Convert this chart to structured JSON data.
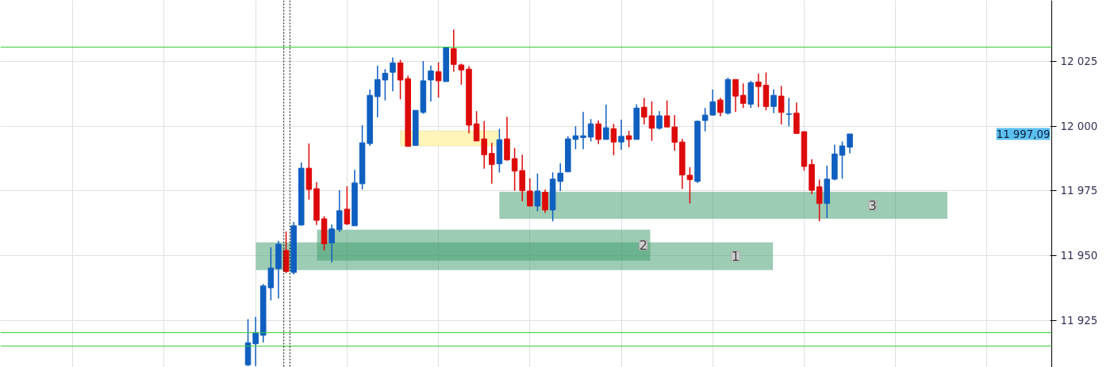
{
  "chart_data": {
    "type": "candlestick",
    "categories": [
      null,
      null,
      null,
      null,
      null,
      null,
      null,
      null,
      null,
      null,
      null,
      null,
      null,
      null,
      null,
      null,
      null,
      null,
      null,
      null,
      null,
      null,
      null,
      null,
      null,
      null,
      null,
      null,
      null,
      null,
      null,
      null,
      null,
      null,
      null,
      null,
      null,
      null,
      null,
      null,
      null,
      null,
      null,
      null,
      null,
      null,
      null,
      null,
      null,
      null,
      null,
      null,
      null,
      null,
      null,
      null,
      null,
      null,
      null,
      null,
      null,
      null,
      null,
      null,
      null,
      null,
      null,
      null,
      null,
      null,
      null,
      null,
      null,
      null,
      null,
      null,
      null,
      null,
      null,
      null,
      null,
      null,
      null,
      null,
      null,
      null,
      null,
      null,
      null,
      null,
      null,
      null,
      null,
      null,
      null,
      null,
      null,
      null,
      null,
      null,
      null,
      null,
      null,
      null,
      null,
      null,
      null,
      null,
      null,
      null,
      null,
      null,
      null,
      null,
      null,
      null,
      null,
      null,
      null,
      null,
      null,
      null,
      null,
      null,
      null,
      null,
      null,
      null,
      null,
      null,
      null,
      null,
      null,
      null,
      null,
      null,
      null,
      null
    ],
    "ohlc": [
      null,
      null,
      null,
      null,
      null,
      null,
      null,
      null,
      null,
      null,
      null,
      null,
      null,
      null,
      null,
      null,
      null,
      null,
      null,
      null,
      null,
      null,
      null,
      null,
      null,
      null,
      null,
      null,
      null,
      null,
      null,
      null,
      [
        11908,
        11925.6,
        11907.5,
        11916.5
      ],
      [
        11916.1,
        11926.5,
        11907.5,
        11920.2
      ],
      [
        11919.4,
        11939.2,
        11916.6,
        11938.4
      ],
      [
        11937.7,
        11953.3,
        11932.8,
        11945.3
      ],
      [
        11945.1,
        11955.8,
        11933.6,
        11954.5
      ],
      [
        11952.1,
        11959.4,
        11943.3,
        11944.0
      ],
      [
        11943.6,
        11963.1,
        11942.8,
        11961.6
      ],
      [
        11961.9,
        11986.0,
        11961.6,
        11983.8
      ],
      [
        11983.8,
        11993.3,
        11971.7,
        11975.6
      ],
      [
        11975.9,
        11978.4,
        11961.9,
        11963.7
      ],
      [
        11964.3,
        11965.3,
        11952.1,
        11954.7
      ],
      [
        11955.0,
        11962.1,
        11947.4,
        11960.4
      ],
      [
        11960.1,
        11975.3,
        11959.2,
        11967.4
      ],
      [
        11968.0,
        11976.8,
        11961.9,
        11962.3
      ],
      [
        11961.6,
        11983.2,
        11961.6,
        11978.1
      ],
      [
        11977.8,
        12000.4,
        11975.6,
        11993.6
      ],
      [
        11993.3,
        12014.1,
        11992.4,
        12011.9
      ],
      [
        12011.4,
        12023.3,
        12003.4,
        12018.0
      ],
      [
        12017.8,
        12022.0,
        12009.9,
        12020.4
      ],
      [
        12020.8,
        12026.5,
        12013.4,
        12024.4
      ],
      [
        12024.4,
        12025.6,
        12010.4,
        12017.8
      ],
      [
        12018.3,
        12019.5,
        11992.2,
        11992.2
      ],
      [
        11992.6,
        12006.1,
        11992.4,
        12006.1
      ],
      [
        12005.3,
        12025.1,
        12004.8,
        12017.5
      ],
      [
        12017.8,
        12023.4,
        12009.5,
        12021.3
      ],
      [
        12021.0,
        12024.6,
        12011.1,
        12017.5
      ],
      [
        12017.2,
        12030.4,
        12017.2,
        12030.4
      ],
      [
        12029.9,
        12037.3,
        12021.0,
        12023.8
      ],
      [
        12023.6,
        12024.1,
        12016.0,
        12021.7
      ],
      [
        12022.0,
        12023.1,
        11997.2,
        12000.4
      ],
      [
        12000.9,
        12005.8,
        11994.3,
        11994.3
      ],
      [
        11995.1,
        12002.0,
        11983.6,
        11989.0
      ],
      [
        11989.5,
        11993.6,
        11977.8,
        11985.2
      ],
      [
        11985.5,
        11999.0,
        11982.1,
        11994.8
      ],
      [
        11995.1,
        12003.6,
        11986.7,
        11987.0
      ],
      [
        11987.5,
        11991.6,
        11975.1,
        11982.7
      ],
      [
        11982.9,
        11989.0,
        11971.0,
        11975.1
      ],
      [
        11975.0,
        11979.9,
        11969.2,
        11969.2
      ],
      [
        11969.2,
        11981.7,
        11967.2,
        11975.0
      ],
      [
        11974.5,
        11975.5,
        11966.5,
        11967.7
      ],
      [
        11967.7,
        11982.2,
        11963.3,
        11979.6
      ],
      [
        11978.7,
        11985.7,
        11975.0,
        11981.9
      ],
      [
        11982.4,
        11996.1,
        11982.4,
        11995.1
      ],
      [
        11994.9,
        12000.0,
        11991.1,
        11996.3
      ],
      [
        11995.6,
        12005.5,
        11991.1,
        11996.3
      ],
      [
        11995.8,
        12002.7,
        11994.1,
        12000.9
      ],
      [
        12000.9,
        12002.2,
        11993.1,
        11994.9
      ],
      [
        11994.9,
        12008.3,
        11994.9,
        11999.4
      ],
      [
        11999.0,
        12000.9,
        11988.8,
        11993.9
      ],
      [
        11993.9,
        12002.5,
        11990.9,
        11996.1
      ],
      [
        11996.3,
        11998.2,
        11991.9,
        11994.9
      ],
      [
        11994.9,
        12008.5,
        11994.9,
        12007.0
      ],
      [
        12007.3,
        12010.9,
        12000.7,
        12003.5
      ],
      [
        12004.0,
        12009.5,
        11994.3,
        11999.2
      ],
      [
        11999.2,
        12005.8,
        11998.7,
        12004.0
      ],
      [
        12004.0,
        12009.9,
        11999.7,
        11999.7
      ],
      [
        11999.7,
        12004.3,
        11990.6,
        11993.8
      ],
      [
        11993.9,
        11995.1,
        11975.8,
        11981.2
      ],
      [
        11981.1,
        11984.2,
        11970.2,
        11979.4
      ],
      [
        11978.7,
        12002.2,
        11978.1,
        12001.9
      ],
      [
        12002.2,
        12007.0,
        11998.0,
        12004.3
      ],
      [
        12004.3,
        12014.1,
        12004.3,
        12009.4
      ],
      [
        12010.1,
        12010.9,
        12003.8,
        12005.3
      ],
      [
        12005.0,
        12018.7,
        12004.5,
        12018.0
      ],
      [
        12018.0,
        12018.0,
        12005.5,
        12011.6
      ],
      [
        12011.9,
        12016.5,
        12007.0,
        12008.8
      ],
      [
        12008.5,
        12017.5,
        12007.0,
        12016.8
      ],
      [
        12017.0,
        12020.3,
        12007.3,
        12015.3
      ],
      [
        12015.8,
        12020.7,
        12006.1,
        12007.6
      ],
      [
        12007.6,
        12014.2,
        12005.0,
        12011.9
      ],
      [
        12011.6,
        12015.5,
        12000.7,
        12005.3
      ],
      [
        12004.6,
        12010.9,
        12000.0,
        12004.7
      ],
      [
        12005.0,
        12009.1,
        11997.2,
        11997.2
      ],
      [
        11997.9,
        11997.9,
        11982.9,
        11984.5
      ],
      [
        11985.2,
        11987.2,
        11973.8,
        11975.3
      ],
      [
        11976.6,
        11979.4,
        11963.3,
        11970.2
      ],
      [
        11970.2,
        11984.8,
        11964.6,
        11979.6
      ],
      [
        11979.6,
        11992.9,
        11979.1,
        11989.3
      ],
      [
        11988.8,
        11994.1,
        11979.7,
        11992.4
      ],
      [
        11991.9,
        11997.0,
        11989.5,
        11997.0
      ],
      null,
      null,
      null,
      null,
      null,
      null,
      null,
      null,
      null,
      null,
      null,
      null,
      null,
      null,
      null,
      null,
      null,
      null,
      null,
      null,
      null,
      null,
      null,
      null,
      null,
      null
    ],
    "colors": [
      null,
      null,
      null,
      null,
      null,
      null,
      null,
      null,
      null,
      null,
      null,
      null,
      null,
      null,
      null,
      null,
      null,
      null,
      null,
      null,
      null,
      null,
      null,
      null,
      null,
      null,
      null,
      null,
      null,
      null,
      null,
      null,
      "#0f5fc0",
      "#0f5fc0",
      "#0f5fc0",
      "#0f5fc0",
      "#0f5fc0",
      "#dd0a0a",
      "#0f5fc0",
      "#0f5fc0",
      "#dd0a0a",
      "#dd0a0a",
      "#dd0a0a",
      "#0f5fc0",
      "#0f5fc0",
      "#dd0a0a",
      "#0f5fc0",
      "#0f5fc0",
      "#0f5fc0",
      "#0f5fc0",
      "#0f5fc0",
      "#0f5fc0",
      "#dd0a0a",
      "#dd0a0a",
      "#0f5fc0",
      "#0f5fc0",
      "#0f5fc0",
      "#dd0a0a",
      "#0f5fc0",
      "#dd0a0a",
      "#dd0a0a",
      "#dd0a0a",
      "#dd0a0a",
      "#dd0a0a",
      "#dd0a0a",
      "#0f5fc0",
      "#dd0a0a",
      "#dd0a0a",
      "#dd0a0a",
      "#dd0a0a",
      "#0f5fc0",
      "#dd0a0a",
      "#0f5fc0",
      "#0f5fc0",
      "#0f5fc0",
      "#0f5fc0",
      "#0f5fc0",
      "#0f5fc0",
      "#dd0a0a",
      "#0f5fc0",
      "#dd0a0a",
      "#0f5fc0",
      "#dd0a0a",
      "#0f5fc0",
      "#dd0a0a",
      "#dd0a0a",
      "#0f5fc0",
      "#dd0a0a",
      "#dd0a0a",
      "#dd0a0a",
      "#dd0a0a",
      "#0f5fc0",
      "#0f5fc0",
      "#0f5fc0",
      "#dd0a0a",
      "#0f5fc0",
      "#dd0a0a",
      "#dd0a0a",
      "#0f5fc0",
      "#dd0a0a",
      "#dd0a0a",
      "#0f5fc0",
      "#dd0a0a",
      "#0f5fc0",
      "#dd0a0a",
      "#dd0a0a",
      "#dd0a0a",
      "#dd0a0a",
      "#0f5fc0",
      "#0f5fc0",
      "#0f5fc0",
      "#0f5fc0",
      null,
      null,
      null,
      null,
      null,
      null,
      null,
      null,
      null,
      null,
      null,
      null,
      null,
      null,
      null,
      null,
      null,
      null,
      null,
      null,
      null,
      null,
      null,
      null,
      null,
      null
    ],
    "ylim": [
      11907,
      12048.5
    ],
    "yticks": [
      {
        "value": 11925,
        "label": "11 925"
      },
      {
        "value": 11950,
        "label": "11 950"
      },
      {
        "value": 11975,
        "label": "11 975"
      },
      {
        "value": 12000,
        "label": "12 000"
      },
      {
        "value": 12025,
        "label": "12 025"
      }
    ],
    "tick_labels": "y",
    "grid": true,
    "ref_lines": [
      {
        "axis": "y",
        "value": 12030.5,
        "color": "#33cc33",
        "line_style": "solid"
      },
      {
        "axis": "y",
        "value": 11920.4,
        "color": "#33cc33",
        "line_style": "solid"
      },
      {
        "axis": "y",
        "value": 11915.2,
        "color": "#33cc33",
        "line_style": "solid"
      }
    ],
    "bands": [
      {
        "axis": "y",
        "from": 11944.5,
        "to": 11955.2,
        "label": "1",
        "color": "#3c9a6a"
      },
      {
        "axis": "y",
        "from": 11948.2,
        "to": 11960.1,
        "label": "2",
        "color": "#3c9a6a"
      },
      {
        "axis": "y",
        "from": 11964.3,
        "to": 11974.7,
        "label": "3",
        "color": "#3c9a6a"
      },
      {
        "axis": "y",
        "from": 11992.4,
        "to": 11998.2,
        "color": "#fff5b8"
      }
    ],
    "annotations": [
      "11 997,09"
    ]
  }
}
